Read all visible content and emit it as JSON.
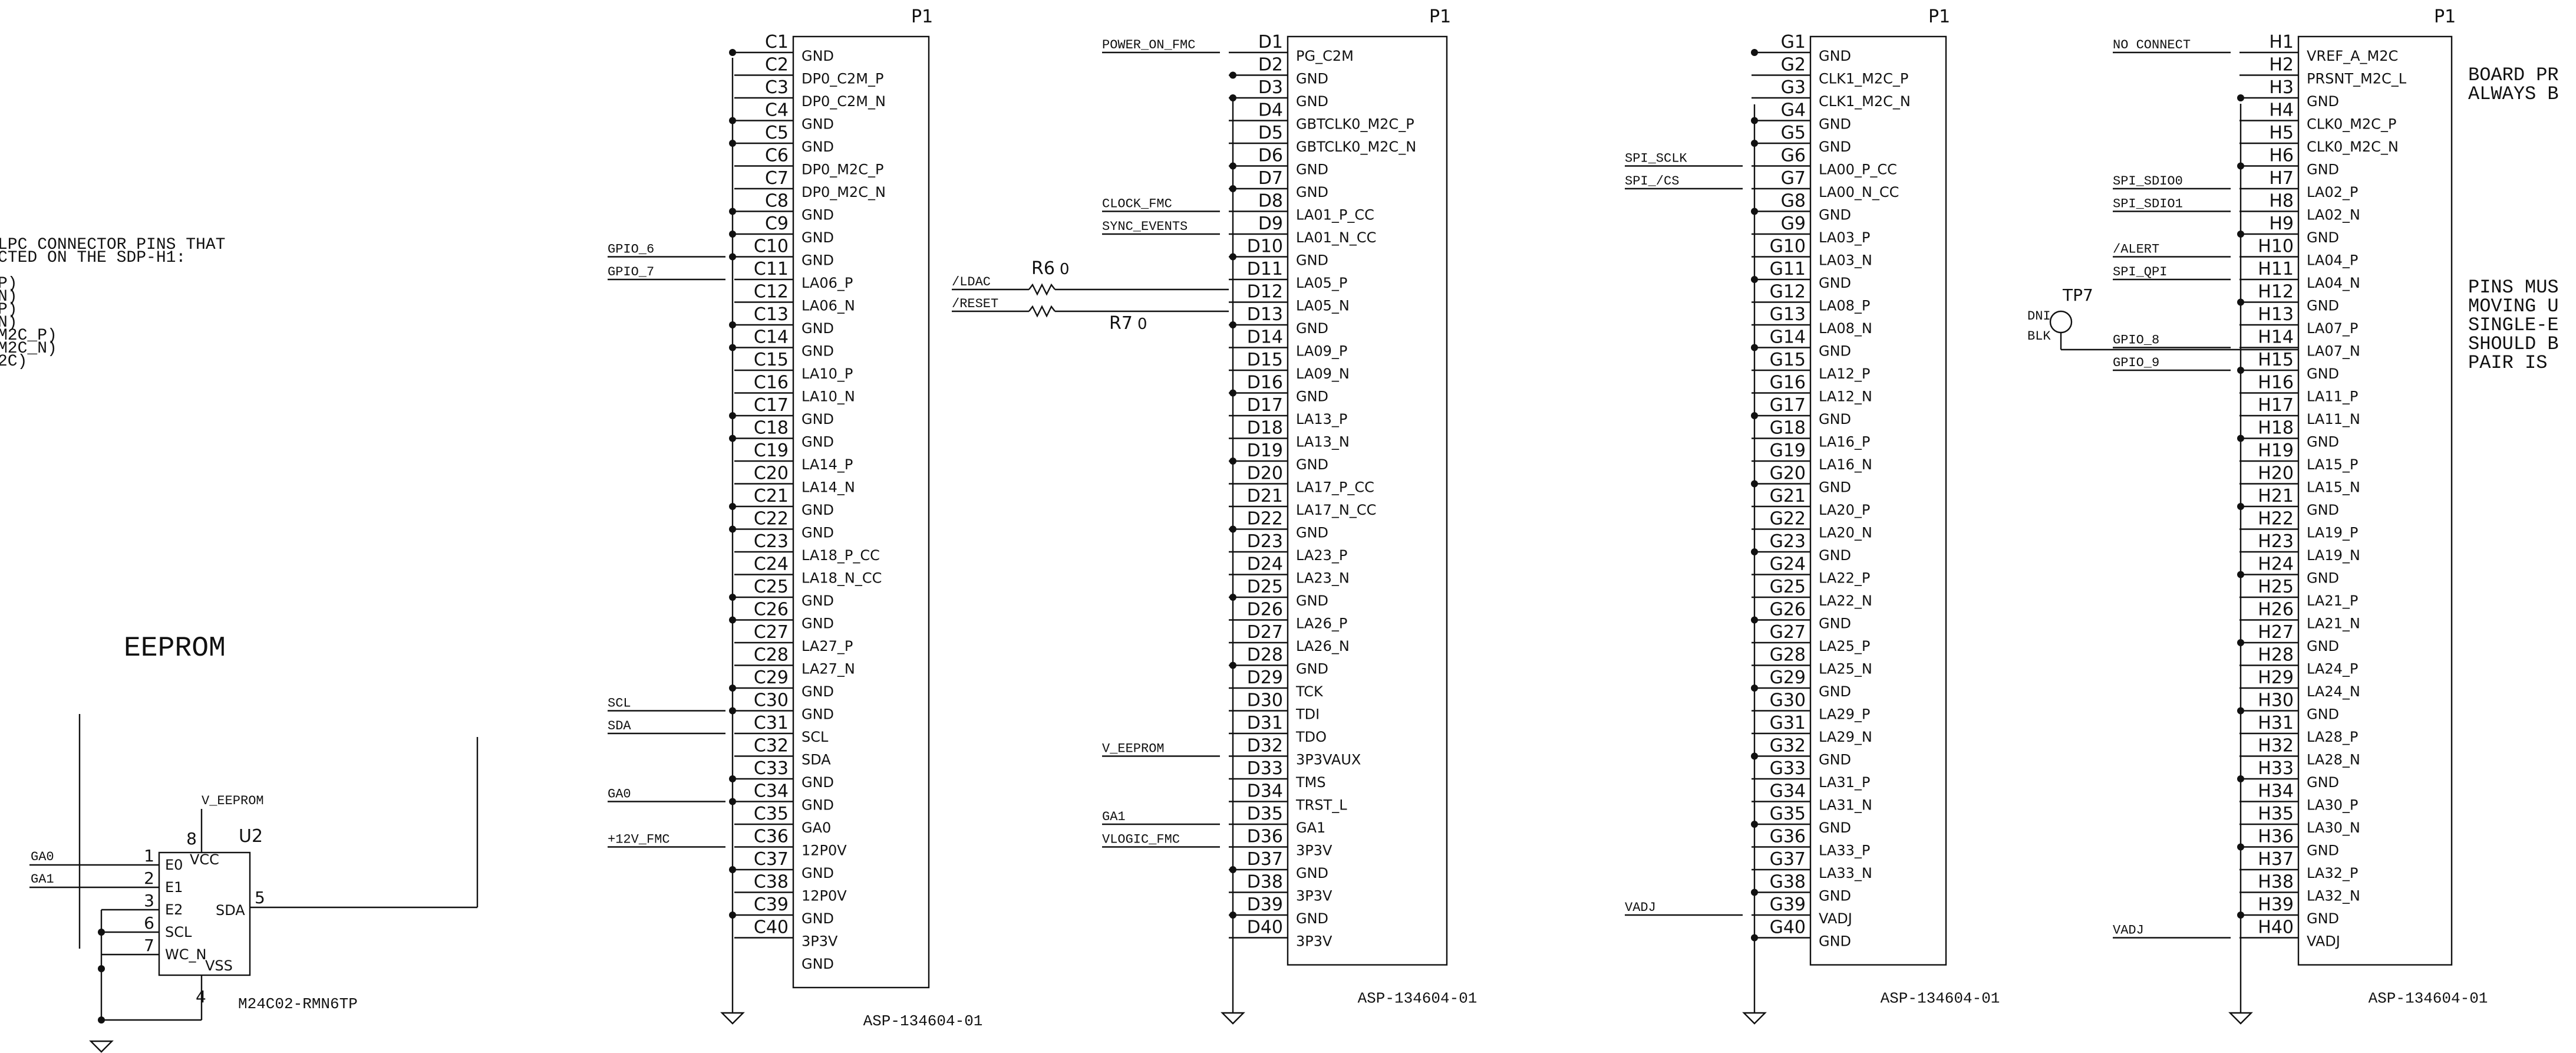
{
  "left_note": {
    "lines": [
      "LPC CONNECTOR PINS THAT",
      "CTED ON THE SDP-H1:",
      "",
      "P)",
      "N)",
      "P)",
      "N)",
      "M2C_P)",
      "M2C_N)",
      "2C)"
    ]
  },
  "eeprom": {
    "section_title": "EEPROM",
    "ref": "U2",
    "part": "M24C02-RMN6TP",
    "power_net": "V_EEPROM",
    "pins_left": [
      {
        "num": "1",
        "name": "E0",
        "net": "GA0"
      },
      {
        "num": "2",
        "name": "E1",
        "net": "GA1"
      },
      {
        "num": "3",
        "name": "E2",
        "net": ""
      },
      {
        "num": "6",
        "name": "SCL",
        "net": ""
      },
      {
        "num": "7",
        "name": "WC_N",
        "net": ""
      }
    ],
    "pin_vcc": {
      "num": "8",
      "name": "VCC"
    },
    "pin_vss": {
      "num": "4",
      "name": "VSS"
    },
    "pin_sda": {
      "num": "5",
      "name": "SDA"
    }
  },
  "connectors": [
    {
      "ref": "P1",
      "part": "ASP-134604-01",
      "row": "C",
      "pins": [
        {
          "pin": "C1",
          "name": "GND",
          "net": ""
        },
        {
          "pin": "C2",
          "name": "DP0_C2M_P",
          "net": ""
        },
        {
          "pin": "C3",
          "name": "DP0_C2M_N",
          "net": ""
        },
        {
          "pin": "C4",
          "name": "GND",
          "net": ""
        },
        {
          "pin": "C5",
          "name": "GND",
          "net": ""
        },
        {
          "pin": "C6",
          "name": "DP0_M2C_P",
          "net": ""
        },
        {
          "pin": "C7",
          "name": "DP0_M2C_N",
          "net": ""
        },
        {
          "pin": "C8",
          "name": "GND",
          "net": ""
        },
        {
          "pin": "C9",
          "name": "GND",
          "net": ""
        },
        {
          "pin": "C10",
          "name": "GND",
          "net": "GPIO_6"
        },
        {
          "pin": "C11",
          "name": "LA06_P",
          "net": "GPIO_7"
        },
        {
          "pin": "C12",
          "name": "LA06_N",
          "net": ""
        },
        {
          "pin": "C13",
          "name": "GND",
          "net": ""
        },
        {
          "pin": "C14",
          "name": "GND",
          "net": ""
        },
        {
          "pin": "C15",
          "name": "LA10_P",
          "net": ""
        },
        {
          "pin": "C16",
          "name": "LA10_N",
          "net": ""
        },
        {
          "pin": "C17",
          "name": "GND",
          "net": ""
        },
        {
          "pin": "C18",
          "name": "GND",
          "net": ""
        },
        {
          "pin": "C19",
          "name": "LA14_P",
          "net": ""
        },
        {
          "pin": "C20",
          "name": "LA14_N",
          "net": ""
        },
        {
          "pin": "C21",
          "name": "GND",
          "net": ""
        },
        {
          "pin": "C22",
          "name": "GND",
          "net": ""
        },
        {
          "pin": "C23",
          "name": "LA18_P_CC",
          "net": ""
        },
        {
          "pin": "C24",
          "name": "LA18_N_CC",
          "net": ""
        },
        {
          "pin": "C25",
          "name": "GND",
          "net": ""
        },
        {
          "pin": "C26",
          "name": "GND",
          "net": ""
        },
        {
          "pin": "C27",
          "name": "LA27_P",
          "net": ""
        },
        {
          "pin": "C28",
          "name": "LA27_N",
          "net": ""
        },
        {
          "pin": "C29",
          "name": "GND",
          "net": ""
        },
        {
          "pin": "C30",
          "name": "GND",
          "net": "SCL"
        },
        {
          "pin": "C31",
          "name": "SCL",
          "net": "SDA"
        },
        {
          "pin": "C32",
          "name": "SDA",
          "net": ""
        },
        {
          "pin": "C33",
          "name": "GND",
          "net": ""
        },
        {
          "pin": "C34",
          "name": "GND",
          "net": "GA0"
        },
        {
          "pin": "C35",
          "name": "GA0",
          "net": ""
        },
        {
          "pin": "C36",
          "name": "12P0V",
          "net": "+12V_FMC"
        },
        {
          "pin": "C37",
          "name": "GND",
          "net": ""
        },
        {
          "pin": "C38",
          "name": "12P0V",
          "net": ""
        },
        {
          "pin": "C39",
          "name": "GND",
          "net": ""
        },
        {
          "pin": "C40",
          "name": "3P3V",
          "net": ""
        },
        {
          "pin": "",
          "name": "GND",
          "net": ""
        }
      ]
    },
    {
      "ref": "P1",
      "part": "ASP-134604-01",
      "row": "D",
      "pins": [
        {
          "pin": "D1",
          "name": "PG_C2M",
          "net": "POWER_ON_FMC"
        },
        {
          "pin": "D2",
          "name": "GND",
          "net": ""
        },
        {
          "pin": "D3",
          "name": "GND",
          "net": ""
        },
        {
          "pin": "D4",
          "name": "GBTCLK0_M2C_P",
          "net": ""
        },
        {
          "pin": "D5",
          "name": "GBTCLK0_M2C_N",
          "net": ""
        },
        {
          "pin": "D6",
          "name": "GND",
          "net": ""
        },
        {
          "pin": "D7",
          "name": "GND",
          "net": ""
        },
        {
          "pin": "D8",
          "name": "LA01_P_CC",
          "net": "CLOCK_FMC"
        },
        {
          "pin": "D9",
          "name": "LA01_N_CC",
          "net": "SYNC_EVENTS"
        },
        {
          "pin": "D10",
          "name": "GND",
          "net": ""
        },
        {
          "pin": "D11",
          "name": "LA05_P",
          "net": ""
        },
        {
          "pin": "D12",
          "name": "LA05_N",
          "net": ""
        },
        {
          "pin": "D13",
          "name": "GND",
          "net": ""
        },
        {
          "pin": "D14",
          "name": "LA09_P",
          "net": ""
        },
        {
          "pin": "D15",
          "name": "LA09_N",
          "net": ""
        },
        {
          "pin": "D16",
          "name": "GND",
          "net": ""
        },
        {
          "pin": "D17",
          "name": "LA13_P",
          "net": ""
        },
        {
          "pin": "D18",
          "name": "LA13_N",
          "net": ""
        },
        {
          "pin": "D19",
          "name": "GND",
          "net": ""
        },
        {
          "pin": "D20",
          "name": "LA17_P_CC",
          "net": ""
        },
        {
          "pin": "D21",
          "name": "LA17_N_CC",
          "net": ""
        },
        {
          "pin": "D22",
          "name": "GND",
          "net": ""
        },
        {
          "pin": "D23",
          "name": "LA23_P",
          "net": ""
        },
        {
          "pin": "D24",
          "name": "LA23_N",
          "net": ""
        },
        {
          "pin": "D25",
          "name": "GND",
          "net": ""
        },
        {
          "pin": "D26",
          "name": "LA26_P",
          "net": ""
        },
        {
          "pin": "D27",
          "name": "LA26_N",
          "net": ""
        },
        {
          "pin": "D28",
          "name": "GND",
          "net": ""
        },
        {
          "pin": "D29",
          "name": "TCK",
          "net": ""
        },
        {
          "pin": "D30",
          "name": "TDI",
          "net": ""
        },
        {
          "pin": "D31",
          "name": "TDO",
          "net": ""
        },
        {
          "pin": "D32",
          "name": "3P3VAUX",
          "net": "V_EEPROM"
        },
        {
          "pin": "D33",
          "name": "TMS",
          "net": ""
        },
        {
          "pin": "D34",
          "name": "TRST_L",
          "net": ""
        },
        {
          "pin": "D35",
          "name": "GA1",
          "net": "GA1"
        },
        {
          "pin": "D36",
          "name": "3P3V",
          "net": "VLOGIC_FMC"
        },
        {
          "pin": "D37",
          "name": "GND",
          "net": ""
        },
        {
          "pin": "D38",
          "name": "3P3V",
          "net": ""
        },
        {
          "pin": "D39",
          "name": "GND",
          "net": ""
        },
        {
          "pin": "D40",
          "name": "3P3V",
          "net": ""
        }
      ]
    },
    {
      "ref": "P1",
      "part": "ASP-134604-01",
      "row": "G",
      "pins": [
        {
          "pin": "G1",
          "name": "GND",
          "net": ""
        },
        {
          "pin": "G2",
          "name": "CLK1_M2C_P",
          "net": ""
        },
        {
          "pin": "G3",
          "name": "CLK1_M2C_N",
          "net": ""
        },
        {
          "pin": "G4",
          "name": "GND",
          "net": ""
        },
        {
          "pin": "G5",
          "name": "GND",
          "net": ""
        },
        {
          "pin": "G6",
          "name": "LA00_P_CC",
          "net": "SPI_SCLK"
        },
        {
          "pin": "G7",
          "name": "LA00_N_CC",
          "net": "SPI_/CS"
        },
        {
          "pin": "G8",
          "name": "GND",
          "net": ""
        },
        {
          "pin": "G9",
          "name": "LA03_P",
          "net": ""
        },
        {
          "pin": "G10",
          "name": "LA03_N",
          "net": ""
        },
        {
          "pin": "G11",
          "name": "GND",
          "net": ""
        },
        {
          "pin": "G12",
          "name": "LA08_P",
          "net": ""
        },
        {
          "pin": "G13",
          "name": "LA08_N",
          "net": ""
        },
        {
          "pin": "G14",
          "name": "GND",
          "net": ""
        },
        {
          "pin": "G15",
          "name": "LA12_P",
          "net": ""
        },
        {
          "pin": "G16",
          "name": "LA12_N",
          "net": ""
        },
        {
          "pin": "G17",
          "name": "GND",
          "net": ""
        },
        {
          "pin": "G18",
          "name": "LA16_P",
          "net": ""
        },
        {
          "pin": "G19",
          "name": "LA16_N",
          "net": ""
        },
        {
          "pin": "G20",
          "name": "GND",
          "net": ""
        },
        {
          "pin": "G21",
          "name": "LA20_P",
          "net": ""
        },
        {
          "pin": "G22",
          "name": "LA20_N",
          "net": ""
        },
        {
          "pin": "G23",
          "name": "GND",
          "net": ""
        },
        {
          "pin": "G24",
          "name": "LA22_P",
          "net": ""
        },
        {
          "pin": "G25",
          "name": "LA22_N",
          "net": ""
        },
        {
          "pin": "G26",
          "name": "GND",
          "net": ""
        },
        {
          "pin": "G27",
          "name": "LA25_P",
          "net": ""
        },
        {
          "pin": "G28",
          "name": "LA25_N",
          "net": ""
        },
        {
          "pin": "G29",
          "name": "GND",
          "net": ""
        },
        {
          "pin": "G30",
          "name": "LA29_P",
          "net": ""
        },
        {
          "pin": "G31",
          "name": "LA29_N",
          "net": ""
        },
        {
          "pin": "G32",
          "name": "GND",
          "net": ""
        },
        {
          "pin": "G33",
          "name": "LA31_P",
          "net": ""
        },
        {
          "pin": "G34",
          "name": "LA31_N",
          "net": ""
        },
        {
          "pin": "G35",
          "name": "GND",
          "net": ""
        },
        {
          "pin": "G36",
          "name": "LA33_P",
          "net": ""
        },
        {
          "pin": "G37",
          "name": "LA33_N",
          "net": ""
        },
        {
          "pin": "G38",
          "name": "GND",
          "net": ""
        },
        {
          "pin": "G39",
          "name": "VADJ",
          "net": "VADJ"
        },
        {
          "pin": "G40",
          "name": "GND",
          "net": ""
        }
      ]
    },
    {
      "ref": "P1",
      "part": "ASP-134604-01",
      "row": "H",
      "pins": [
        {
          "pin": "H1",
          "name": "VREF_A_M2C",
          "net": "NO CONNECT"
        },
        {
          "pin": "H2",
          "name": "PRSNT_M2C_L",
          "net": ""
        },
        {
          "pin": "H3",
          "name": "GND",
          "net": ""
        },
        {
          "pin": "H4",
          "name": "CLK0_M2C_P",
          "net": ""
        },
        {
          "pin": "H5",
          "name": "CLK0_M2C_N",
          "net": ""
        },
        {
          "pin": "H6",
          "name": "GND",
          "net": ""
        },
        {
          "pin": "H7",
          "name": "LA02_P",
          "net": "SPI_SDIO0"
        },
        {
          "pin": "H8",
          "name": "LA02_N",
          "net": "SPI_SDIO1"
        },
        {
          "pin": "H9",
          "name": "GND",
          "net": ""
        },
        {
          "pin": "H10",
          "name": "LA04_P",
          "net": "/ALERT"
        },
        {
          "pin": "H11",
          "name": "LA04_N",
          "net": "SPI_QPI"
        },
        {
          "pin": "H12",
          "name": "GND",
          "net": ""
        },
        {
          "pin": "H13",
          "name": "LA07_P",
          "net": ""
        },
        {
          "pin": "H14",
          "name": "LA07_N",
          "net": "GPIO_8"
        },
        {
          "pin": "H15",
          "name": "GND",
          "net": "GPIO_9"
        },
        {
          "pin": "H16",
          "name": "LA11_P",
          "net": ""
        },
        {
          "pin": "H17",
          "name": "LA11_N",
          "net": ""
        },
        {
          "pin": "H18",
          "name": "GND",
          "net": ""
        },
        {
          "pin": "H19",
          "name": "LA15_P",
          "net": ""
        },
        {
          "pin": "H20",
          "name": "LA15_N",
          "net": ""
        },
        {
          "pin": "H21",
          "name": "GND",
          "net": ""
        },
        {
          "pin": "H22",
          "name": "LA19_P",
          "net": ""
        },
        {
          "pin": "H23",
          "name": "LA19_N",
          "net": ""
        },
        {
          "pin": "H24",
          "name": "GND",
          "net": ""
        },
        {
          "pin": "H25",
          "name": "LA21_P",
          "net": ""
        },
        {
          "pin": "H26",
          "name": "LA21_N",
          "net": ""
        },
        {
          "pin": "H27",
          "name": "GND",
          "net": ""
        },
        {
          "pin": "H28",
          "name": "LA24_P",
          "net": ""
        },
        {
          "pin": "H29",
          "name": "LA24_N",
          "net": ""
        },
        {
          "pin": "H30",
          "name": "GND",
          "net": ""
        },
        {
          "pin": "H31",
          "name": "LA28_P",
          "net": ""
        },
        {
          "pin": "H32",
          "name": "LA28_N",
          "net": ""
        },
        {
          "pin": "H33",
          "name": "GND",
          "net": ""
        },
        {
          "pin": "H34",
          "name": "LA30_P",
          "net": ""
        },
        {
          "pin": "H35",
          "name": "LA30_N",
          "net": ""
        },
        {
          "pin": "H36",
          "name": "GND",
          "net": ""
        },
        {
          "pin": "H37",
          "name": "LA32_P",
          "net": ""
        },
        {
          "pin": "H38",
          "name": "LA32_N",
          "net": ""
        },
        {
          "pin": "H39",
          "name": "GND",
          "net": ""
        },
        {
          "pin": "H40",
          "name": "VADJ",
          "net": "VADJ"
        }
      ]
    }
  ],
  "resistors": [
    {
      "ref": "R6",
      "value": "0",
      "net": "/LDAC"
    },
    {
      "ref": "R7",
      "value": "0",
      "net": "/RESET"
    }
  ],
  "testpoint": {
    "ref": "TP7",
    "note1": "DNI",
    "note2": "BLK"
  },
  "right_notes": {
    "note1": [
      "BOARD PR",
      "ALWAYS B"
    ],
    "note2": [
      "PINS MUS",
      "MOVING U",
      "SINGLE-E",
      "SHOULD B",
      "PAIR IS"
    ]
  },
  "colors": {
    "ink": "#111111",
    "background": "#ffffff"
  }
}
